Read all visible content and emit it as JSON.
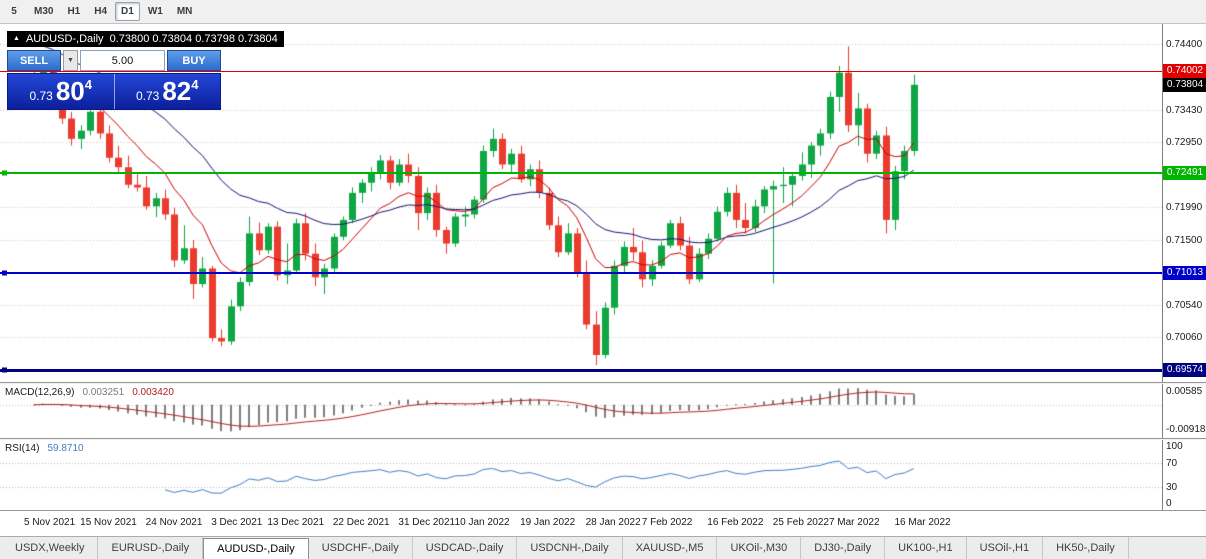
{
  "icons": {
    "collapse": "▲",
    "dropdown": "▼"
  },
  "toolbar": {
    "timeframes": [
      {
        "label": "5",
        "active": false
      },
      {
        "label": "M30",
        "active": false
      },
      {
        "label": "H1",
        "active": false
      },
      {
        "label": "H4",
        "active": false
      },
      {
        "label": "D1",
        "active": true
      },
      {
        "label": "W1",
        "active": false
      },
      {
        "label": "MN",
        "active": false
      }
    ]
  },
  "chart": {
    "symbol_title": "AUDUSD-,Daily",
    "ohlc_readout": "0.73800 0.73804 0.73798 0.73804",
    "trade_panel": {
      "sell_label": "SELL",
      "buy_label": "BUY",
      "volume": "5.00",
      "sell_price_prefix": "0.73",
      "sell_price_big": "80",
      "sell_price_sup": "4",
      "buy_price_prefix": "0.73",
      "buy_price_big": "82",
      "buy_price_sup": "4"
    },
    "price_axis_ticks": [
      {
        "label": "0.74400",
        "value": 0.744
      },
      {
        "label": "0.73430",
        "value": 0.7343
      },
      {
        "label": "0.72950",
        "value": 0.7295
      },
      {
        "label": "0.71990",
        "value": 0.7199
      },
      {
        "label": "0.71500",
        "value": 0.715
      },
      {
        "label": "0.70540",
        "value": 0.7054
      },
      {
        "label": "0.70060",
        "value": 0.7006
      }
    ],
    "current_price_badge": {
      "label": "0.73804",
      "value": 0.73804,
      "bg": "#000000"
    },
    "levels": [
      {
        "label": "0.74002",
        "value": 0.74002,
        "color": "#e00000",
        "thickness": 1,
        "marker": false
      },
      {
        "label": "0.72491",
        "value": 0.72491,
        "color": "#00b400",
        "thickness": 2,
        "marker": true
      },
      {
        "label": "0.71013",
        "value": 0.71013,
        "color": "#0000cc",
        "thickness": 2,
        "marker": true
      },
      {
        "label": "0.69574",
        "value": 0.69574,
        "color": "#000080",
        "thickness": 3,
        "marker": true
      }
    ],
    "x_axis_labels": [
      {
        "label": "5 Nov 2021",
        "i": 0
      },
      {
        "label": "15 Nov 2021",
        "i": 6
      },
      {
        "label": "24 Nov 2021",
        "i": 13
      },
      {
        "label": "3 Dec 2021",
        "i": 20
      },
      {
        "label": "13 Dec 2021",
        "i": 26
      },
      {
        "label": "22 Dec 2021",
        "i": 33
      },
      {
        "label": "31 Dec 2021",
        "i": 40
      },
      {
        "label": "10 Jan 2022",
        "i": 46
      },
      {
        "label": "19 Jan 2022",
        "i": 53
      },
      {
        "label": "28 Jan 2022",
        "i": 60
      },
      {
        "label": "7 Feb 2022",
        "i": 66
      },
      {
        "label": "16 Feb 2022",
        "i": 73
      },
      {
        "label": "25 Feb 2022",
        "i": 80
      },
      {
        "label": "7 Mar 2022",
        "i": 86
      },
      {
        "label": "16 Mar 2022",
        "i": 93
      }
    ],
    "colors": {
      "bull": "#0fa644",
      "bear": "#eb3b2e",
      "ma_fast": "#cc0000",
      "ma_slow": "#14146e",
      "grid": "#c9c9c9"
    },
    "chart_data": {
      "type": "candlestick",
      "symbol": "AUDUSD",
      "timeframe": "Daily",
      "ohlc": [
        [
          0.7388,
          0.741,
          0.736,
          0.7365
        ],
        [
          0.7365,
          0.7425,
          0.736,
          0.741
        ],
        [
          0.741,
          0.7418,
          0.7355,
          0.736
        ],
        [
          0.736,
          0.737,
          0.7322,
          0.733
        ],
        [
          0.733,
          0.734,
          0.729,
          0.73
        ],
        [
          0.73,
          0.732,
          0.7285,
          0.7312
        ],
        [
          0.7312,
          0.7345,
          0.7305,
          0.734
        ],
        [
          0.734,
          0.7348,
          0.73,
          0.7308
        ],
        [
          0.7308,
          0.732,
          0.7265,
          0.7272
        ],
        [
          0.7272,
          0.729,
          0.725,
          0.7258
        ],
        [
          0.7258,
          0.7275,
          0.7227,
          0.7232
        ],
        [
          0.7232,
          0.7248,
          0.7222,
          0.7228
        ],
        [
          0.7228,
          0.7245,
          0.7195,
          0.72
        ],
        [
          0.72,
          0.722,
          0.7184,
          0.7212
        ],
        [
          0.7212,
          0.7225,
          0.718,
          0.7188
        ],
        [
          0.7188,
          0.7198,
          0.711,
          0.712
        ],
        [
          0.712,
          0.7172,
          0.7115,
          0.7138
        ],
        [
          0.7138,
          0.715,
          0.7063,
          0.7085
        ],
        [
          0.7085,
          0.7125,
          0.708,
          0.7108
        ],
        [
          0.7108,
          0.7112,
          0.7,
          0.7005
        ],
        [
          0.7005,
          0.7018,
          0.6993,
          0.7
        ],
        [
          0.7,
          0.7062,
          0.6995,
          0.7052
        ],
        [
          0.7052,
          0.7095,
          0.7045,
          0.7088
        ],
        [
          0.7088,
          0.7185,
          0.7082,
          0.716
        ],
        [
          0.716,
          0.7176,
          0.7128,
          0.7135
        ],
        [
          0.7135,
          0.7175,
          0.713,
          0.717
        ],
        [
          0.717,
          0.7178,
          0.709,
          0.7098
        ],
        [
          0.7098,
          0.7145,
          0.7085,
          0.7105
        ],
        [
          0.7105,
          0.7182,
          0.71,
          0.7175
        ],
        [
          0.7175,
          0.719,
          0.712,
          0.713
        ],
        [
          0.713,
          0.7145,
          0.7082,
          0.7095
        ],
        [
          0.7095,
          0.7115,
          0.707,
          0.7108
        ],
        [
          0.7108,
          0.716,
          0.71,
          0.7155
        ],
        [
          0.7155,
          0.7185,
          0.715,
          0.718
        ],
        [
          0.718,
          0.7228,
          0.7175,
          0.722
        ],
        [
          0.722,
          0.724,
          0.7205,
          0.7235
        ],
        [
          0.7235,
          0.7258,
          0.7222,
          0.725
        ],
        [
          0.725,
          0.7276,
          0.724,
          0.7268
        ],
        [
          0.7268,
          0.7275,
          0.7225,
          0.7235
        ],
        [
          0.7235,
          0.727,
          0.723,
          0.7262
        ],
        [
          0.7262,
          0.7278,
          0.7235,
          0.7245
        ],
        [
          0.7245,
          0.7258,
          0.7165,
          0.719
        ],
        [
          0.719,
          0.7228,
          0.718,
          0.722
        ],
        [
          0.722,
          0.7232,
          0.7155,
          0.7165
        ],
        [
          0.7165,
          0.717,
          0.713,
          0.7145
        ],
        [
          0.7145,
          0.719,
          0.714,
          0.7185
        ],
        [
          0.7185,
          0.72,
          0.717,
          0.7188
        ],
        [
          0.7188,
          0.7215,
          0.7182,
          0.721
        ],
        [
          0.721,
          0.729,
          0.7205,
          0.7282
        ],
        [
          0.7282,
          0.7315,
          0.7273,
          0.73
        ],
        [
          0.73,
          0.7308,
          0.7255,
          0.7262
        ],
        [
          0.7262,
          0.7285,
          0.725,
          0.7278
        ],
        [
          0.7278,
          0.729,
          0.7235,
          0.724
        ],
        [
          0.724,
          0.7262,
          0.723,
          0.7255
        ],
        [
          0.7255,
          0.7268,
          0.7212,
          0.722
        ],
        [
          0.722,
          0.7228,
          0.7165,
          0.7172
        ],
        [
          0.7172,
          0.7185,
          0.7125,
          0.7132
        ],
        [
          0.7132,
          0.7175,
          0.7128,
          0.716
        ],
        [
          0.716,
          0.7168,
          0.7095,
          0.7102
        ],
        [
          0.7102,
          0.712,
          0.7018,
          0.7025
        ],
        [
          0.7025,
          0.7045,
          0.6965,
          0.698
        ],
        [
          0.698,
          0.7058,
          0.6975,
          0.705
        ],
        [
          0.705,
          0.712,
          0.704,
          0.7112
        ],
        [
          0.7112,
          0.7148,
          0.71,
          0.714
        ],
        [
          0.714,
          0.7168,
          0.712,
          0.7132
        ],
        [
          0.7132,
          0.715,
          0.708,
          0.7092
        ],
        [
          0.7092,
          0.712,
          0.7082,
          0.7112
        ],
        [
          0.7112,
          0.7148,
          0.7108,
          0.7142
        ],
        [
          0.7142,
          0.718,
          0.7138,
          0.7175
        ],
        [
          0.7175,
          0.7185,
          0.7135,
          0.7142
        ],
        [
          0.7142,
          0.7155,
          0.7085,
          0.7092
        ],
        [
          0.7092,
          0.7138,
          0.7088,
          0.713
        ],
        [
          0.713,
          0.716,
          0.7122,
          0.7152
        ],
        [
          0.7152,
          0.72,
          0.7148,
          0.7192
        ],
        [
          0.7192,
          0.7228,
          0.7185,
          0.722
        ],
        [
          0.722,
          0.7232,
          0.7168,
          0.718
        ],
        [
          0.718,
          0.7205,
          0.716,
          0.7168
        ],
        [
          0.7168,
          0.721,
          0.7162,
          0.72
        ],
        [
          0.72,
          0.723,
          0.719,
          0.7225
        ],
        [
          0.7225,
          0.7238,
          0.7086,
          0.723
        ],
        [
          0.723,
          0.7258,
          0.7205,
          0.7232
        ],
        [
          0.7232,
          0.725,
          0.72,
          0.7245
        ],
        [
          0.7245,
          0.728,
          0.7238,
          0.7262
        ],
        [
          0.7262,
          0.7295,
          0.7242,
          0.729
        ],
        [
          0.729,
          0.7315,
          0.7275,
          0.7308
        ],
        [
          0.7308,
          0.737,
          0.73,
          0.7362
        ],
        [
          0.7362,
          0.7408,
          0.734,
          0.7398
        ],
        [
          0.7398,
          0.7437,
          0.731,
          0.732
        ],
        [
          0.732,
          0.7368,
          0.729,
          0.7345
        ],
        [
          0.7345,
          0.7352,
          0.7265,
          0.7278
        ],
        [
          0.7278,
          0.7312,
          0.727,
          0.7305
        ],
        [
          0.7305,
          0.7318,
          0.716,
          0.718
        ],
        [
          0.718,
          0.726,
          0.7165,
          0.7252
        ],
        [
          0.7252,
          0.729,
          0.724,
          0.7282
        ],
        [
          0.7282,
          0.7395,
          0.7275,
          0.738
        ]
      ]
    }
  },
  "macd": {
    "name": "MACD(12,26,9)",
    "value_main": "0.003251",
    "value_signal": "0.003420",
    "axis_ticks": [
      "0.00585",
      "-0.00918"
    ],
    "params": {
      "fast": 12,
      "slow": 26,
      "signal": 9
    },
    "colors": {
      "hist": "#7f7f7f",
      "signal": "#b22020"
    }
  },
  "rsi": {
    "name": "RSI(14)",
    "value": "59.8710",
    "period": 14,
    "levels": [
      70,
      30
    ],
    "axis_ticks": [
      "100",
      "70",
      "30",
      "0"
    ],
    "color": "#3f7fbf"
  },
  "tabs": [
    {
      "label": "USDX,Weekly",
      "active": false
    },
    {
      "label": "EURUSD-,Daily",
      "active": false
    },
    {
      "label": "AUDUSD-,Daily",
      "active": true
    },
    {
      "label": "USDCHF-,Daily",
      "active": false
    },
    {
      "label": "USDCAD-,Daily",
      "active": false
    },
    {
      "label": "USDCNH-,Daily",
      "active": false
    },
    {
      "label": "XAUUSD-,M5",
      "active": false
    },
    {
      "label": "UKOil-,M30",
      "active": false
    },
    {
      "label": "DJ30-,Daily",
      "active": false
    },
    {
      "label": "UK100-,H1",
      "active": false
    },
    {
      "label": "USOil-,H1",
      "active": false
    },
    {
      "label": "HK50-,Daily",
      "active": false
    }
  ]
}
